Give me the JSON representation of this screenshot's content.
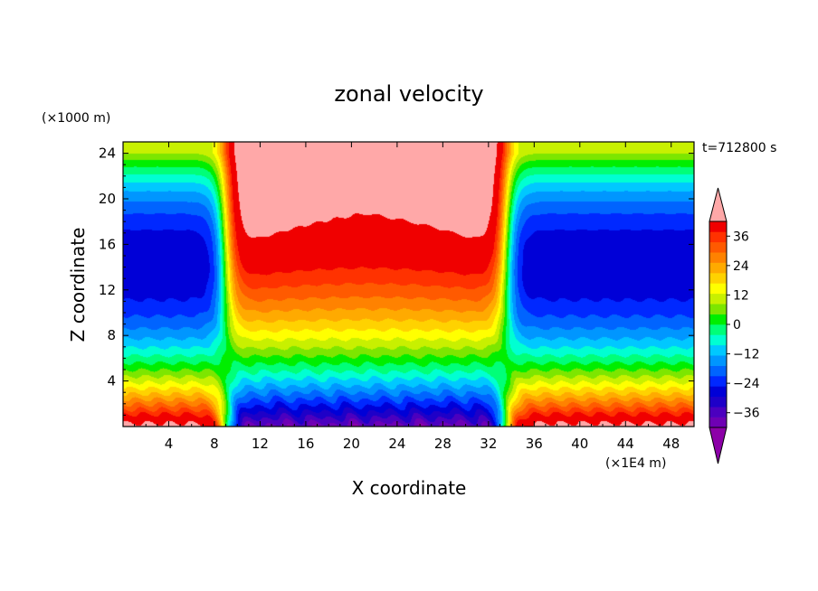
{
  "chart_data": {
    "type": "heatmap",
    "title": "zonal velocity",
    "xlabel": "X coordinate",
    "ylabel": "Z coordinate",
    "x_units": "(×1E4 m)",
    "y_units": "(×1000 m)",
    "time_label": "t=712800 s",
    "xlim": [
      0,
      50
    ],
    "ylim": [
      0,
      25
    ],
    "x_ticks": [
      4,
      8,
      12,
      16,
      20,
      24,
      28,
      32,
      36,
      40,
      44,
      48
    ],
    "y_ticks": [
      4,
      8,
      12,
      16,
      20,
      24
    ],
    "colorbar": {
      "min": -42,
      "max": 42,
      "step": 4,
      "tick_labels": [
        36,
        24,
        12,
        0,
        -12,
        -24,
        -36
      ],
      "colors": [
        "#8c00a8",
        "#6e00b4",
        "#4b00bf",
        "#1e00c8",
        "#0000d7",
        "#0028ff",
        "#0064ff",
        "#0096ff",
        "#00c8ff",
        "#00ffd2",
        "#00ff78",
        "#00ee00",
        "#7de600",
        "#c8f000",
        "#ffff00",
        "#ffd200",
        "#ffaa00",
        "#ff8200",
        "#ff5a00",
        "#ff3200",
        "#f00000",
        "#ffa8a8"
      ]
    }
  }
}
